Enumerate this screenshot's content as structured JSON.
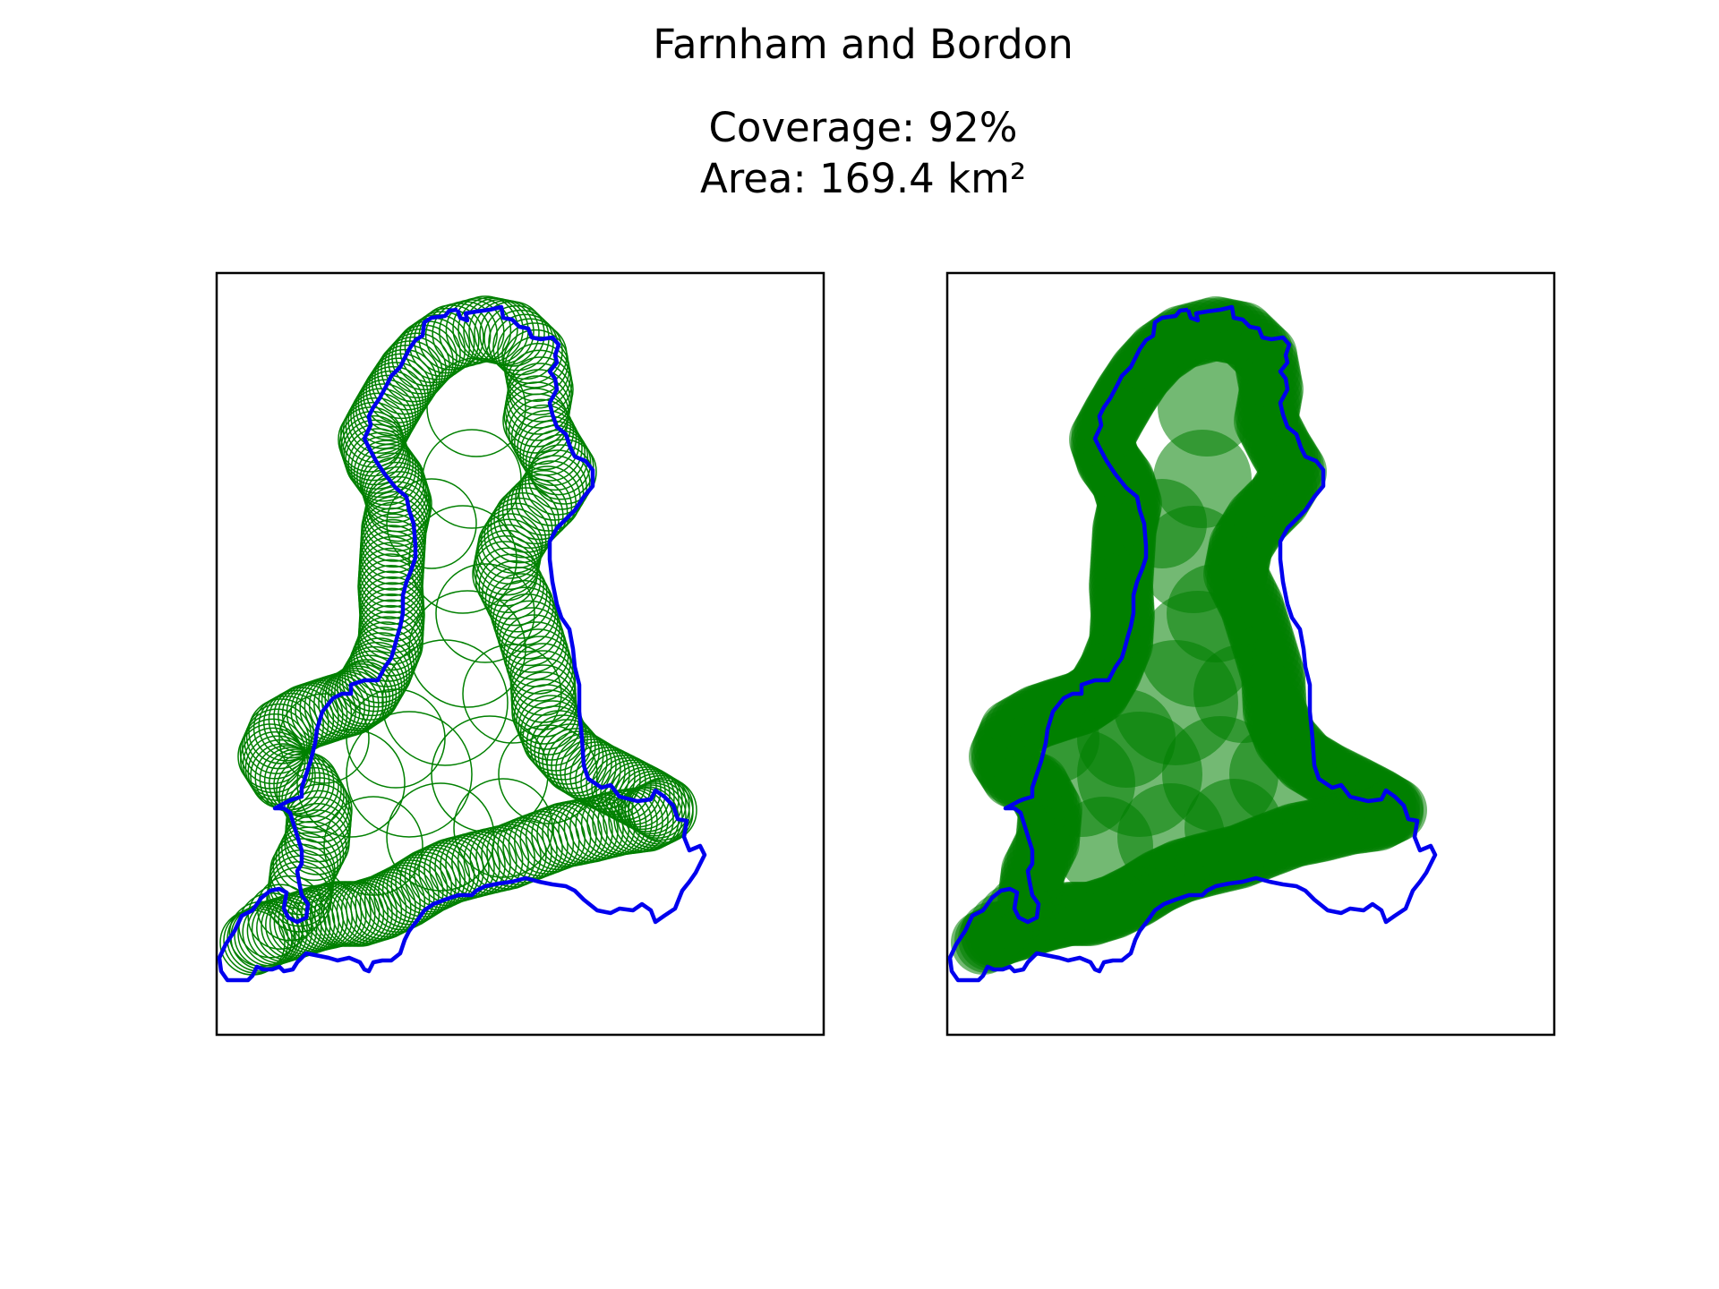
{
  "title": "Farnham and Bordon",
  "stats": {
    "coverage": "Coverage: 92%",
    "area": "Area: 169.4 km²"
  },
  "colors": {
    "boundary": "#0000ee",
    "coverage": "#008000",
    "frame": "#000000",
    "background": "#ffffff"
  },
  "panels": [
    {
      "name": "outline",
      "style": "outline"
    },
    {
      "name": "filled",
      "style": "filled"
    }
  ]
}
